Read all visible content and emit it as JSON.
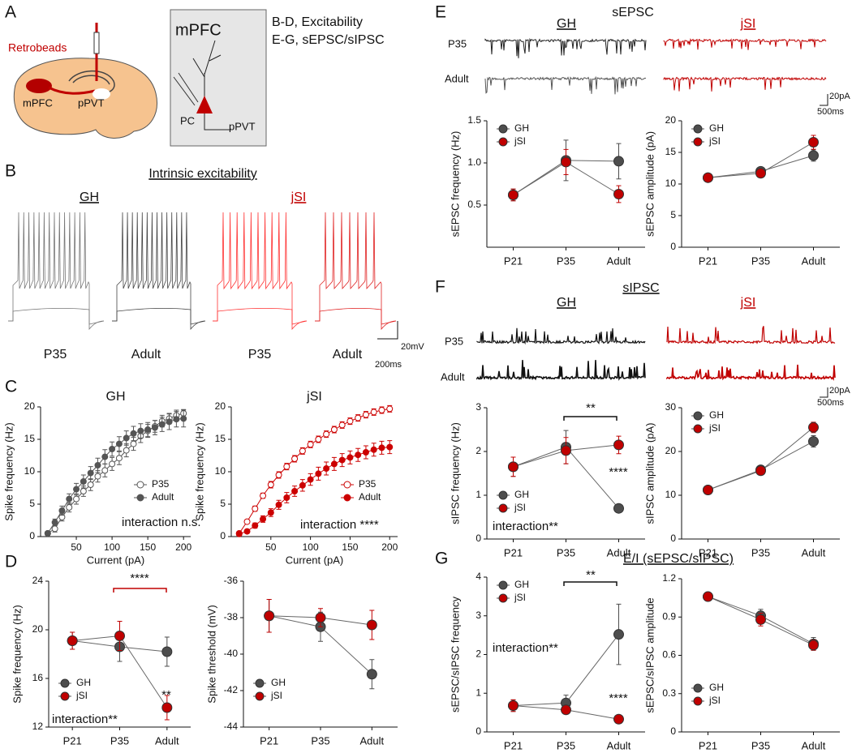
{
  "panel_labels": [
    "A",
    "B",
    "C",
    "D",
    "E",
    "F",
    "G"
  ],
  "panel_a": {
    "retrobeads": "Retrobeads",
    "mpfc": "mPFC",
    "ppvt": "pPVT",
    "box_title": "mPFC",
    "pc": "PC",
    "box_ppvt": "pPVT",
    "notes": [
      "B-D, Excitability",
      "E-G, sEPSC/sIPSC"
    ]
  },
  "panel_b": {
    "title": "Intrinsic excitability",
    "groups": [
      "GH",
      "jSI"
    ],
    "traces": [
      "P35",
      "Adult",
      "P35",
      "Adult"
    ],
    "scale": [
      "20mV",
      "200ms"
    ]
  },
  "panel_e": {
    "title": "sEPSC",
    "groups": [
      "GH",
      "jSI"
    ],
    "rows": [
      "P35",
      "Adult"
    ],
    "scale": [
      "20pA",
      "500ms"
    ]
  },
  "panel_f": {
    "title": "sIPSC",
    "groups": [
      "GH",
      "jSI"
    ],
    "rows": [
      "P35",
      "Adult"
    ],
    "scale": [
      "20pA",
      "500ms"
    ]
  },
  "panel_g": {
    "title": "E/I (sEPSC/sIPSC)"
  },
  "chart_data": [
    {
      "type": "line",
      "title": "GH",
      "title_color": "#111111",
      "x_label": "Current (pA)",
      "y_label": "Spike frequency (Hz)",
      "x": [
        10,
        20,
        30,
        40,
        50,
        60,
        70,
        80,
        90,
        100,
        110,
        120,
        130,
        140,
        150,
        160,
        170,
        180,
        190,
        200
      ],
      "xlim": [
        0,
        210
      ],
      "xticks": [
        50,
        100,
        150,
        200
      ],
      "ylim": [
        0,
        20
      ],
      "yticks": [
        0,
        5,
        10,
        15,
        20
      ],
      "legend": "lower right",
      "series": [
        {
          "name": "P35",
          "color": "#555555",
          "marker": "open",
          "values": [
            0.5,
            1.2,
            3,
            4.5,
            5.8,
            7,
            8,
            9.3,
            10.2,
            11.2,
            12.1,
            13.3,
            14.3,
            15.5,
            16.3,
            17,
            17.8,
            18.2,
            18.7,
            19
          ],
          "errors": [
            0.3,
            0.5,
            0.6,
            0.7,
            0.8,
            0.8,
            0.9,
            0.9,
            1,
            1,
            1,
            1,
            1,
            1,
            1,
            0.9,
            0.9,
            0.8,
            0.8,
            0.6
          ]
        },
        {
          "name": "Adult",
          "color": "#555555",
          "marker": "filled",
          "values": [
            0.5,
            2.2,
            4,
            5.8,
            7.3,
            8.5,
            9.8,
            11,
            12.3,
            13.5,
            14.3,
            15.2,
            15.9,
            16.3,
            16.5,
            16.8,
            17.3,
            17.7,
            18.1,
            18.2
          ],
          "errors": [
            0.3,
            0.5,
            0.7,
            0.8,
            0.9,
            1,
            1,
            1.1,
            1.1,
            1.1,
            1.1,
            1.1,
            1.1,
            1.1,
            1.1,
            1.1,
            1.1,
            1.2,
            1.2,
            1.3
          ]
        }
      ],
      "annotations": [
        {
          "text": "interaction n.s.",
          "color": "#111111"
        }
      ]
    },
    {
      "type": "line",
      "title": "jSI",
      "title_color": "#c00000",
      "x_label": "Current (pA)",
      "y_label": "Spike frequency (Hz)",
      "x": [
        10,
        20,
        30,
        40,
        50,
        60,
        70,
        80,
        90,
        100,
        110,
        120,
        130,
        140,
        150,
        160,
        170,
        180,
        190,
        200
      ],
      "xlim": [
        0,
        210
      ],
      "xticks": [
        50,
        100,
        150,
        200
      ],
      "ylim": [
        0,
        20
      ],
      "yticks": [
        0,
        5,
        10,
        15,
        20
      ],
      "legend": "lower right",
      "series": [
        {
          "name": "P35",
          "color": "#cc0000",
          "marker": "open",
          "values": [
            0.5,
            2.3,
            4.3,
            6.3,
            8,
            9.5,
            10.8,
            12,
            13.2,
            14.2,
            15,
            15.8,
            16.5,
            17.2,
            17.8,
            18.3,
            18.8,
            19.2,
            19.5,
            19.7
          ],
          "errors": [
            0.2,
            0.3,
            0.4,
            0.4,
            0.5,
            0.5,
            0.5,
            0.5,
            0.5,
            0.5,
            0.5,
            0.5,
            0.5,
            0.5,
            0.5,
            0.5,
            0.5,
            0.5,
            0.5,
            0.5
          ]
        },
        {
          "name": "Adult",
          "color": "#cc0000",
          "marker": "filled",
          "values": [
            0.4,
            0.8,
            1.7,
            2.7,
            3.7,
            4.9,
            6,
            7,
            7.9,
            8.8,
            9.7,
            10.5,
            11.2,
            11.8,
            12.2,
            12.6,
            13,
            13.4,
            13.7,
            13.8
          ],
          "errors": [
            0.2,
            0.3,
            0.4,
            0.5,
            0.6,
            0.7,
            0.8,
            0.8,
            0.9,
            0.9,
            1,
            1,
            1,
            1,
            1,
            1,
            1,
            1,
            1,
            1
          ]
        }
      ],
      "annotations": [
        {
          "text": "interaction ****",
          "color": "#111111"
        }
      ]
    },
    {
      "type": "line",
      "y_label": "Spike frequency (Hz)",
      "categories": [
        "P21",
        "P35",
        "Adult"
      ],
      "ylim": [
        12,
        24
      ],
      "yticks": [
        12,
        16,
        20,
        24
      ],
      "legend": "lower left",
      "series": [
        {
          "name": "GH",
          "color": "#4d4d4d",
          "marker": "filled",
          "values": [
            19.1,
            18.6,
            18.2
          ],
          "errors": [
            0.7,
            1.2,
            1.2
          ]
        },
        {
          "name": "jSI",
          "color": "#c00000",
          "marker": "filled",
          "values": [
            19.1,
            19.5,
            13.6
          ],
          "errors": [
            0.7,
            1.2,
            1
          ]
        }
      ],
      "annotations": [
        {
          "text": "****",
          "color": "#c00000"
        },
        {
          "text": "**",
          "color": "#111111"
        },
        {
          "text": "interaction**",
          "color": "#111111"
        }
      ]
    },
    {
      "type": "line",
      "y_label": "Spike threshold (mV)",
      "categories": [
        "P21",
        "P35",
        "Adult"
      ],
      "ylim": [
        -44,
        -36
      ],
      "yticks": [
        -44,
        -42,
        -40,
        -38,
        -36
      ],
      "legend": "lower left",
      "series": [
        {
          "name": "GH",
          "color": "#4d4d4d",
          "marker": "filled",
          "values": [
            -37.9,
            -38.5,
            -41.1
          ],
          "errors": [
            0.9,
            0.8,
            0.8
          ]
        },
        {
          "name": "jSI",
          "color": "#c00000",
          "marker": "filled",
          "values": [
            -37.9,
            -38,
            -38.4
          ],
          "errors": [
            0.9,
            0.5,
            0.8
          ]
        }
      ],
      "annotations": []
    },
    {
      "type": "line",
      "y_label": "sEPSC frequency (Hz)",
      "categories": [
        "P21",
        "P35",
        "Adult"
      ],
      "ylim": [
        0,
        1.5
      ],
      "yticks": [
        0.5,
        {
          "value": 1,
          "label": "1.0"
        },
        1.5
      ],
      "legend": "upper left",
      "series": [
        {
          "name": "GH",
          "color": "#4d4d4d",
          "marker": "filled",
          "values": [
            0.62,
            1.03,
            1.02
          ],
          "errors": [
            0.07,
            0.24,
            0.21
          ]
        },
        {
          "name": "jSI",
          "color": "#c00000",
          "marker": "filled",
          "values": [
            0.62,
            1.01,
            0.63
          ],
          "errors": [
            0.07,
            0.15,
            0.1
          ]
        }
      ],
      "annotations": []
    },
    {
      "type": "line",
      "y_label": "sEPSC amplitude (pA)",
      "categories": [
        "P21",
        "P35",
        "Adult"
      ],
      "ylim": [
        0,
        20
      ],
      "yticks": [
        0,
        5,
        10,
        15,
        20
      ],
      "legend": "upper left",
      "series": [
        {
          "name": "GH",
          "color": "#4d4d4d",
          "marker": "filled",
          "values": [
            11,
            12,
            14.5
          ],
          "errors": [
            0.6,
            0.5,
            0.9
          ]
        },
        {
          "name": "jSI",
          "color": "#c00000",
          "marker": "filled",
          "values": [
            11,
            11.7,
            16.6
          ],
          "errors": [
            0.6,
            0.5,
            1.1
          ]
        }
      ],
      "annotations": []
    },
    {
      "type": "line",
      "y_label": "sIPSC frequency (Hz)",
      "categories": [
        "P21",
        "P35",
        "Adult"
      ],
      "ylim": [
        0,
        3
      ],
      "yticks": [
        0,
        1,
        2,
        3
      ],
      "legend": "lower left",
      "series": [
        {
          "name": "GH",
          "color": "#4d4d4d",
          "marker": "filled",
          "values": [
            1.65,
            2.1,
            0.7
          ],
          "errors": [
            0.22,
            0.38,
            0.06
          ]
        },
        {
          "name": "jSI",
          "color": "#c00000",
          "marker": "filled",
          "values": [
            1.65,
            2.02,
            2.15
          ],
          "errors": [
            0.22,
            0.3,
            0.2
          ]
        }
      ],
      "annotations": [
        {
          "text": "**",
          "color": "#111111"
        },
        {
          "text": "****",
          "color": "#111111"
        },
        {
          "text": "interaction**",
          "color": "#111111"
        }
      ]
    },
    {
      "type": "line",
      "y_label": "sIPSC amplitude (pA)",
      "categories": [
        "P21",
        "P35",
        "Adult"
      ],
      "ylim": [
        0,
        30
      ],
      "yticks": [
        0,
        10,
        20,
        30
      ],
      "legend": "upper left",
      "series": [
        {
          "name": "GH",
          "color": "#4d4d4d",
          "marker": "filled",
          "values": [
            11.2,
            15.8,
            22.3
          ],
          "errors": [
            0.7,
            0.9,
            1.3
          ]
        },
        {
          "name": "jSI",
          "color": "#c00000",
          "marker": "filled",
          "values": [
            11.2,
            15.6,
            25.5
          ],
          "errors": [
            0.7,
            0.8,
            1.2
          ]
        }
      ],
      "annotations": []
    },
    {
      "type": "line",
      "y_label": "sEPSC/sIPSC frequency",
      "categories": [
        "P21",
        "P35",
        "Adult"
      ],
      "ylim": [
        0,
        4
      ],
      "yticks": [
        0,
        1,
        2,
        3,
        4
      ],
      "legend": "upper left",
      "series": [
        {
          "name": "GH",
          "color": "#4d4d4d",
          "marker": "filled",
          "values": [
            0.68,
            0.75,
            2.52
          ],
          "errors": [
            0.15,
            0.2,
            0.78
          ]
        },
        {
          "name": "jSI",
          "color": "#c00000",
          "marker": "filled",
          "values": [
            0.68,
            0.57,
            0.33
          ],
          "errors": [
            0.15,
            0.1,
            0.1
          ]
        }
      ],
      "annotations": [
        {
          "text": "**",
          "color": "#111111"
        },
        {
          "text": "interaction**",
          "color": "#111111"
        },
        {
          "text": "****",
          "color": "#111111"
        }
      ]
    },
    {
      "type": "line",
      "y_label": "sEPSC/sIPSC amplitude",
      "categories": [
        "P21",
        "P35",
        "Adult"
      ],
      "ylim": [
        0,
        1.2
      ],
      "yticks": [
        0,
        0.3,
        0.6,
        0.9,
        1.2
      ],
      "legend": "lower left",
      "series": [
        {
          "name": "GH",
          "color": "#4d4d4d",
          "marker": "filled",
          "values": [
            1.06,
            0.91,
            0.69
          ],
          "errors": [
            0.03,
            0.05,
            0.05
          ]
        },
        {
          "name": "jSI",
          "color": "#c00000",
          "marker": "filled",
          "values": [
            1.06,
            0.88,
            0.68
          ],
          "errors": [
            0.03,
            0.05,
            0.04
          ]
        }
      ],
      "annotations": []
    }
  ]
}
